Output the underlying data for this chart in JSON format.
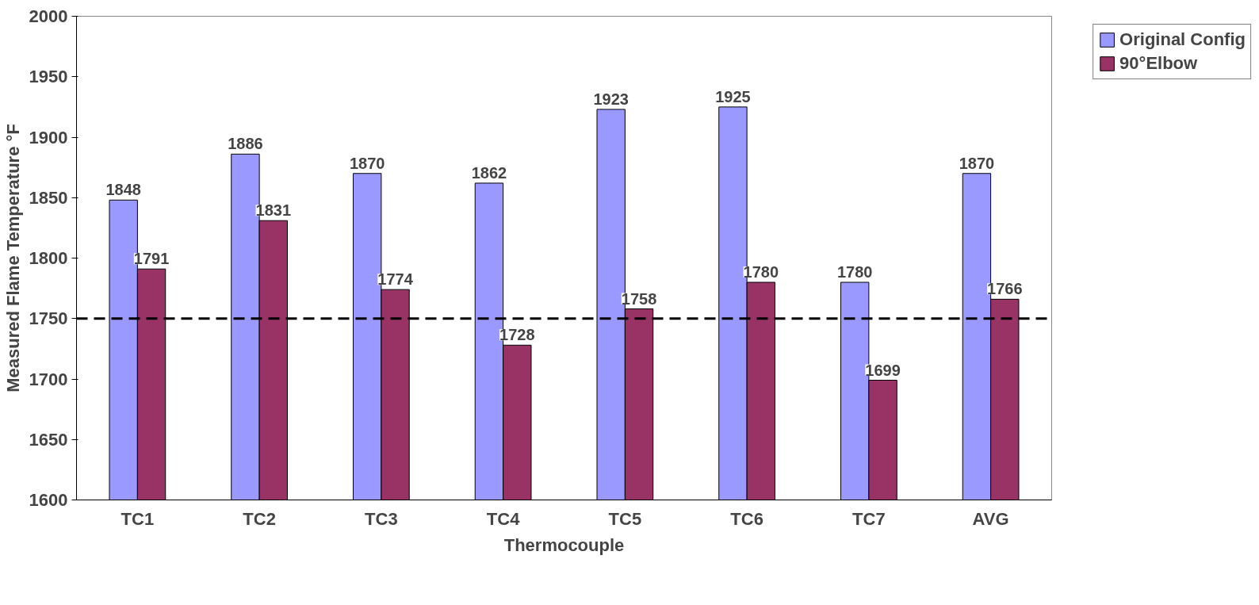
{
  "chart_data": {
    "type": "bar",
    "xlabel": "Thermocouple",
    "ylabel": "Measured Flame Temperature °F",
    "categories": [
      "TC1",
      "TC2",
      "TC3",
      "TC4",
      "TC5",
      "TC6",
      "TC7",
      "AVG"
    ],
    "series": [
      {
        "name": "Original Config",
        "color": "#9999ff",
        "values": [
          1848,
          1886,
          1870,
          1862,
          1923,
          1925,
          1780,
          1870
        ]
      },
      {
        "name": "90°Elbow",
        "color": "#993366",
        "values": [
          1791,
          1831,
          1774,
          1728,
          1758,
          1780,
          1699,
          1766
        ]
      }
    ],
    "ylim": [
      1600,
      2000
    ],
    "yticks": [
      1600,
      1650,
      1700,
      1750,
      1800,
      1850,
      1900,
      1950,
      2000
    ],
    "ref_lines": [
      {
        "axis": "y",
        "value": 1750,
        "color": "#000000",
        "line_style": "dashed"
      }
    ],
    "data_labels": true,
    "legend": "right",
    "grid": false
  }
}
